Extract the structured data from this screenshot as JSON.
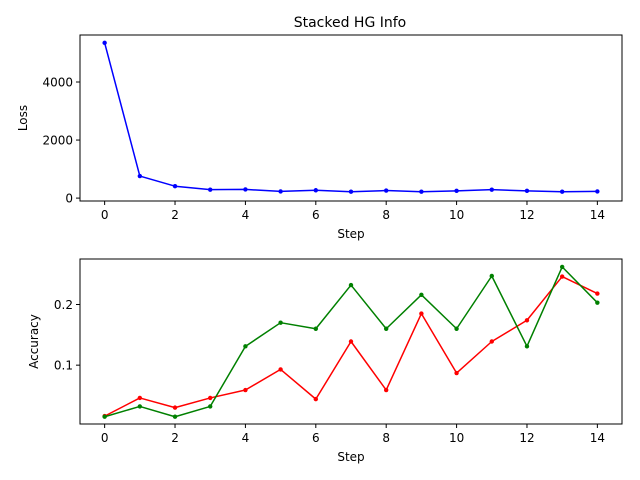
{
  "figure_title": "Stacked HG Info",
  "chart_data": [
    {
      "type": "line",
      "title": "Stacked HG Info",
      "xlabel": "Step",
      "ylabel": "Loss",
      "xlim": [
        -0.7,
        14.7
      ],
      "ylim": [
        -100,
        5620
      ],
      "xticks": [
        0,
        2,
        4,
        6,
        8,
        10,
        12,
        14
      ],
      "yticks": [
        0,
        2000,
        4000
      ],
      "grid": false,
      "series": [
        {
          "color": "#0000ff",
          "x": [
            0,
            1,
            2,
            3,
            4,
            5,
            6,
            7,
            8,
            9,
            10,
            11,
            12,
            13,
            14
          ],
          "values": [
            5350,
            760,
            410,
            290,
            300,
            230,
            270,
            220,
            260,
            220,
            250,
            290,
            250,
            220,
            230
          ]
        }
      ]
    },
    {
      "type": "line",
      "title": "",
      "xlabel": "Step",
      "ylabel": "Accuracy",
      "xlim": [
        -0.7,
        14.7
      ],
      "ylim": [
        0.003,
        0.275
      ],
      "xticks": [
        0,
        2,
        4,
        6,
        8,
        10,
        12,
        14
      ],
      "yticks": [
        0.1,
        0.2
      ],
      "grid": false,
      "series": [
        {
          "color": "#ff0000",
          "x": [
            0,
            1,
            2,
            3,
            4,
            5,
            6,
            7,
            8,
            9,
            10,
            11,
            12,
            13,
            14
          ],
          "values": [
            0.016,
            0.046,
            0.03,
            0.046,
            0.059,
            0.093,
            0.044,
            0.139,
            0.059,
            0.185,
            0.087,
            0.139,
            0.174,
            0.246,
            0.218
          ]
        },
        {
          "color": "#008000",
          "x": [
            0,
            1,
            2,
            3,
            4,
            5,
            6,
            7,
            8,
            9,
            10,
            11,
            12,
            13,
            14
          ],
          "values": [
            0.015,
            0.032,
            0.015,
            0.032,
            0.131,
            0.17,
            0.16,
            0.232,
            0.16,
            0.216,
            0.16,
            0.247,
            0.131,
            0.262,
            0.203
          ]
        }
      ]
    }
  ]
}
